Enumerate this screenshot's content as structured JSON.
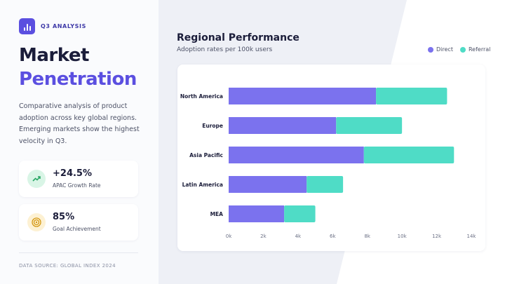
{
  "header": {
    "badge": "Q3 ANALYSIS"
  },
  "hero": {
    "title_line1": "Market",
    "title_line2": "Penetration",
    "description": "Comparative analysis of product adoption across key global regions. Emerging markets show the highest velocity in Q3."
  },
  "stats": [
    {
      "value": "+24.5%",
      "label": "APAC Growth Rate",
      "icon": "trend-up-icon"
    },
    {
      "value": "85%",
      "label": "Goal Achievement",
      "icon": "target-icon"
    }
  ],
  "footer": {
    "source": "DATA SOURCE: GLOBAL INDEX 2024"
  },
  "colors": {
    "accent": "#5b4fe0",
    "direct": "#7b72ee",
    "referral": "#4fdcc6"
  },
  "chart_data": {
    "type": "bar",
    "orientation": "horizontal",
    "stacked": true,
    "title": "Regional Performance",
    "subtitle": "Adoption rates per 100k users",
    "categories": [
      "North America",
      "Europe",
      "Asia Pacific",
      "Latin America",
      "MEA"
    ],
    "series": [
      {
        "name": "Direct",
        "color": "#7b72ee",
        "values": [
          8500,
          6200,
          7800,
          4500,
          3200
        ]
      },
      {
        "name": "Referral",
        "color": "#4fdcc6",
        "values": [
          4100,
          3800,
          5200,
          2100,
          1800
        ]
      }
    ],
    "xlim": [
      0,
      14000
    ],
    "xticks": [
      0,
      2000,
      4000,
      6000,
      8000,
      10000,
      12000,
      14000
    ],
    "xtick_labels": [
      "0k",
      "2k",
      "4k",
      "6k",
      "8k",
      "10k",
      "12k",
      "14k"
    ],
    "legend_position": "top-right",
    "grid": false
  }
}
